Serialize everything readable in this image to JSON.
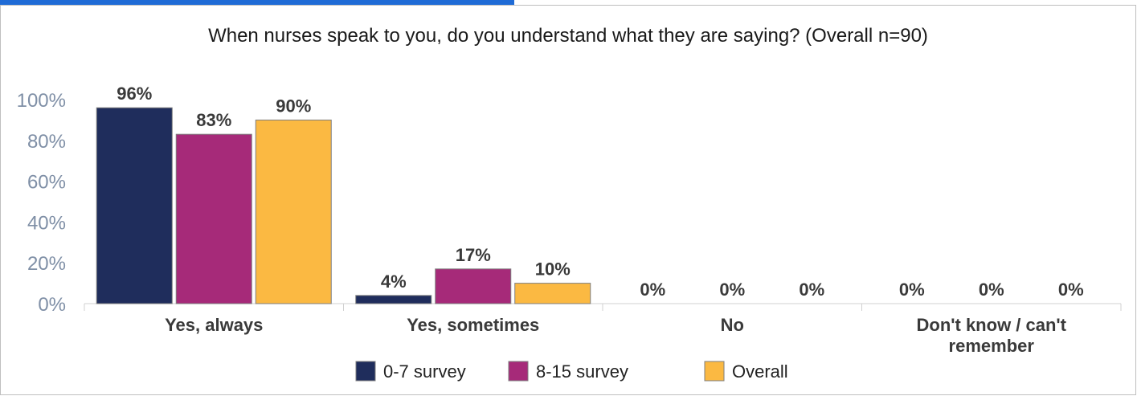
{
  "chart_data": {
    "type": "bar",
    "title": "When nurses speak to you, do you understand what they are saying? (Overall n=90)",
    "header_cut_text": "",
    "categories": [
      "Yes, always",
      "Yes, sometimes",
      "No",
      "Don't know / can't remember"
    ],
    "series": [
      {
        "name": "0-7 survey",
        "values": [
          96,
          4,
          0,
          0
        ],
        "labels": [
          "96%",
          "4%",
          "0%",
          "0%"
        ]
      },
      {
        "name": "8-15 survey",
        "values": [
          83,
          17,
          0,
          0
        ],
        "labels": [
          "83%",
          "17%",
          "0%",
          "0%"
        ]
      },
      {
        "name": "Overall",
        "values": [
          90,
          10,
          0,
          0
        ],
        "labels": [
          "90%",
          "10%",
          "0%",
          "0%"
        ]
      }
    ],
    "ylim": [
      0,
      100
    ],
    "yticks": [
      0,
      20,
      40,
      60,
      80,
      100
    ],
    "ytick_labels": [
      "0%",
      "20%",
      "40%",
      "60%",
      "80%",
      "100%"
    ],
    "xlabel": "",
    "ylabel": "",
    "grid": false,
    "legend_position": "bottom",
    "colors": {
      "series": [
        "#1f2d5c",
        "#a62a79",
        "#fbb942"
      ],
      "bar_edge": "#7f7f7f",
      "axis_tick_text": "#7f8fa6",
      "label_text": "#3a3a3a",
      "header_band": "#1f6bd6",
      "frame": "#bfbfbf",
      "axis_line": "#d0d0d0"
    }
  }
}
